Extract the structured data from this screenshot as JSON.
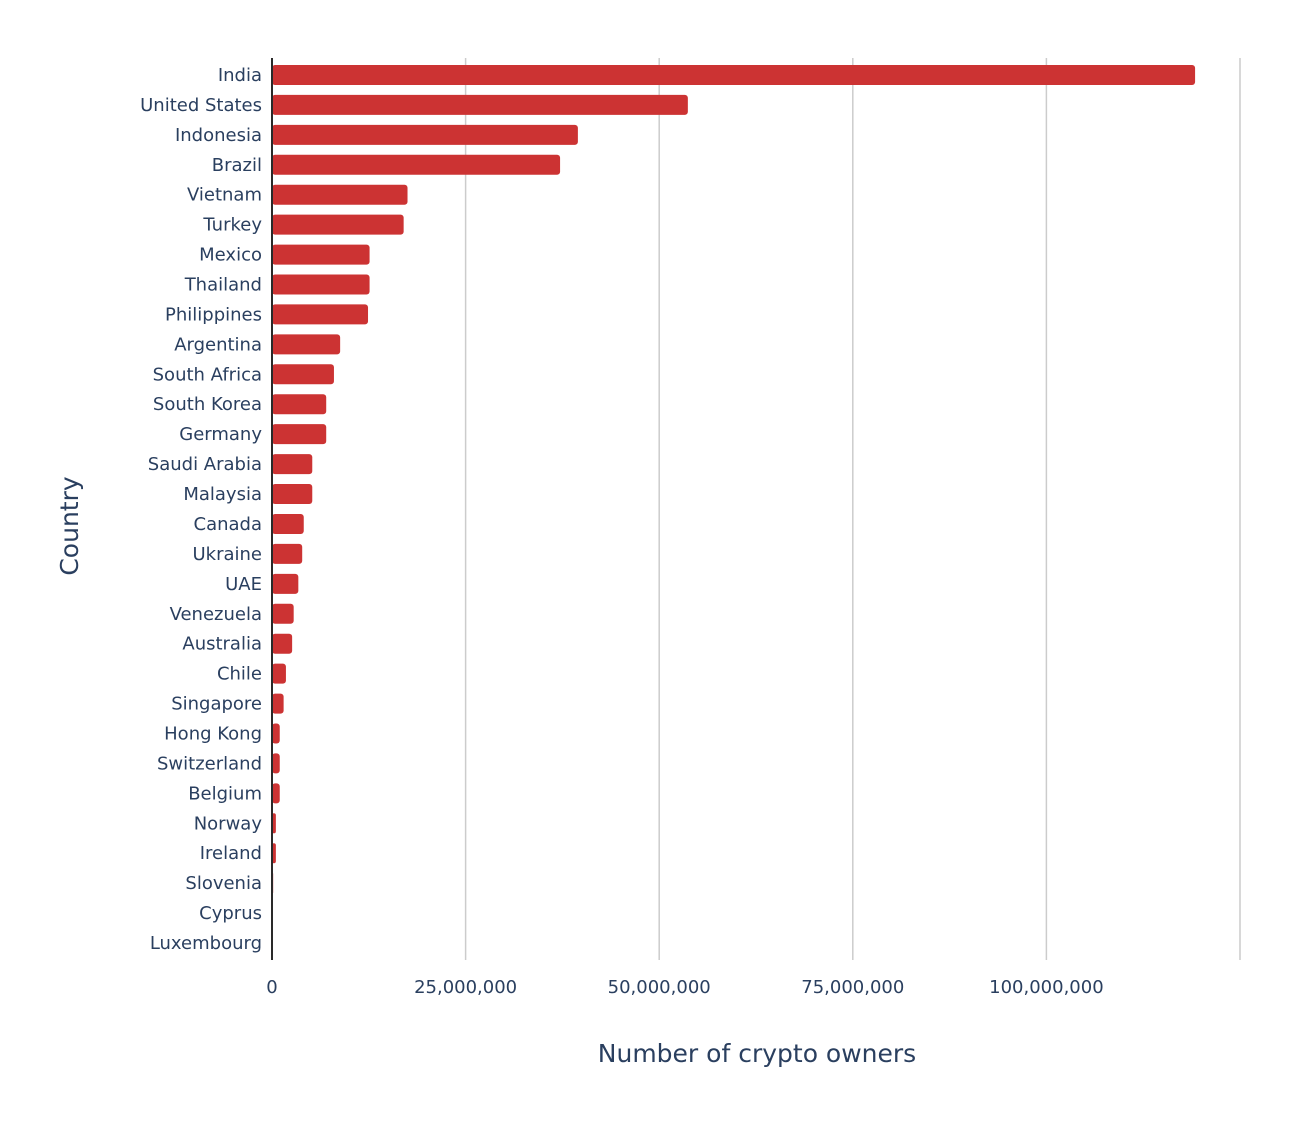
{
  "chart_data": {
    "type": "bar",
    "orientation": "horizontal",
    "xlabel": "Number of crypto owners",
    "ylabel": "Country",
    "xlim": [
      0,
      125000000
    ],
    "xticks": [
      0,
      25000000,
      50000000,
      75000000,
      100000000
    ],
    "xtick_labels": [
      "0",
      "25,000,000",
      "50,000,000",
      "75,000,000",
      "100,000,000"
    ],
    "grid": true,
    "bar_color": "#cc3333",
    "categories": [
      "India",
      "United States",
      "Indonesia",
      "Brazil",
      "Vietnam",
      "Turkey",
      "Mexico",
      "Thailand",
      "Philippines",
      "Argentina",
      "South Africa",
      "South Korea",
      "Germany",
      "Saudi Arabia",
      "Malaysia",
      "Canada",
      "Ukraine",
      "UAE",
      "Venezuela",
      "Australia",
      "Chile",
      "Singapore",
      "Hong Kong",
      "Switzerland",
      "Belgium",
      "Norway",
      "Ireland",
      "Slovenia",
      "Cyprus",
      "Luxembourg"
    ],
    "values": [
      119200000,
      53700000,
      39500000,
      37200000,
      17500000,
      17000000,
      12600000,
      12600000,
      12400000,
      8800000,
      8000000,
      7000000,
      7000000,
      5200000,
      5200000,
      4100000,
      3900000,
      3400000,
      2800000,
      2600000,
      1800000,
      1500000,
      1000000,
      1000000,
      1000000,
      500000,
      500000,
      150000,
      50000,
      40000
    ]
  }
}
